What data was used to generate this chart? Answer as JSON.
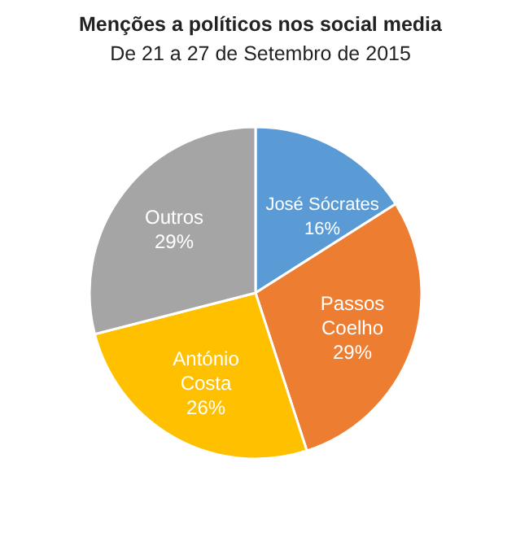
{
  "chart_data": {
    "type": "pie",
    "title": "Menções a políticos nos social media",
    "subtitle": "De 21 a 27 de Setembro de 2015",
    "categories": [
      "José Sócrates",
      "Passos Coelho",
      "António Costa",
      "Outros"
    ],
    "values": [
      16,
      29,
      26,
      29
    ],
    "value_labels": [
      "16%",
      "29%",
      "26%",
      "29%"
    ],
    "colors": [
      "#5b9bd5",
      "#ed7d31",
      "#ffc000",
      "#a5a5a5"
    ]
  }
}
